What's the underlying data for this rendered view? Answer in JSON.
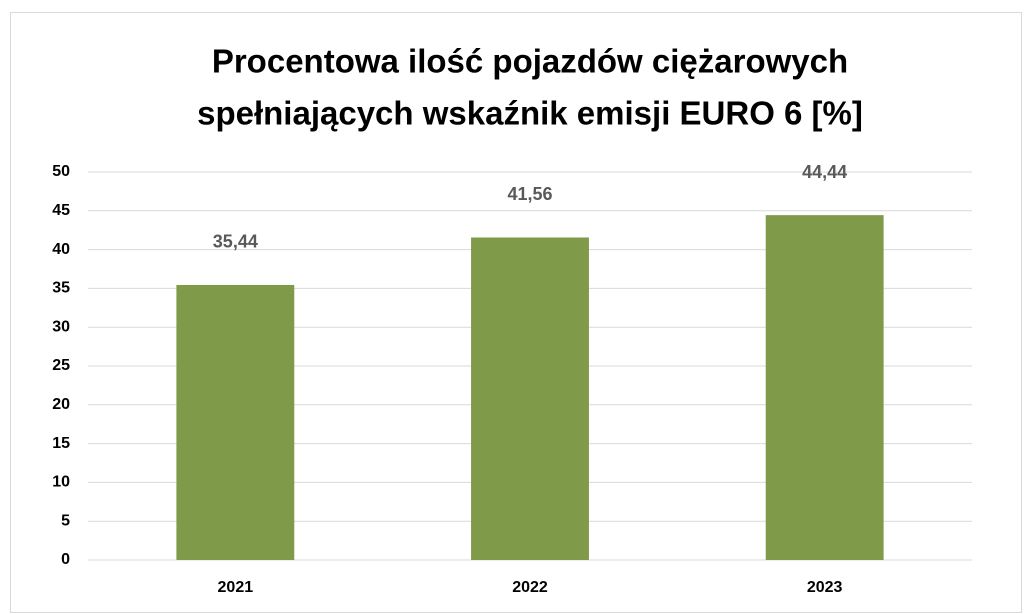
{
  "chart_data": {
    "type": "bar",
    "title": [
      "Procentowa ilość pojazdów ciężarowych",
      "spełniających wskaźnik emisji EURO 6  [%]"
    ],
    "categories": [
      "2021",
      "2022",
      "2023"
    ],
    "values": [
      35.44,
      41.56,
      44.44
    ],
    "value_labels": [
      "35,44",
      "41,56",
      "44,44"
    ],
    "color": "#7f9a48",
    "ylim": [
      0,
      50
    ],
    "yticks": [
      0,
      5,
      10,
      15,
      20,
      25,
      30,
      35,
      40,
      45,
      50
    ],
    "grid": true
  }
}
